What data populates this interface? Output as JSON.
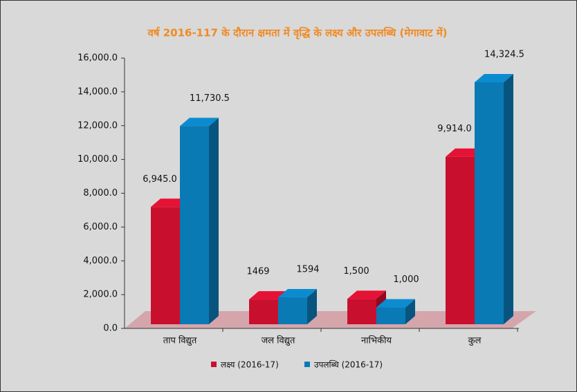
{
  "chart_data": {
    "type": "bar3d",
    "title": "वर्ष 2016-117 के दौरान क्षमता में वृद्धि के लक्ष्य और उपलब्धि (मेगावाट में)",
    "categories": [
      "ताप विद्युत",
      "जल विद्युत",
      "नाभिकीय",
      "कुल"
    ],
    "series": [
      {
        "name": "लक्ष्य (2016-17)",
        "color": "#c8102e",
        "values": [
          6945,
          1469,
          1500,
          9914
        ],
        "value_labels": [
          "6,945.0",
          "1469",
          "1,500",
          "9,914.0"
        ]
      },
      {
        "name": "उपलब्धि (2016-17)",
        "color": "#0a7ab5",
        "values": [
          11730.5,
          1594,
          1000,
          14324.5
        ],
        "value_labels": [
          "11,730.5",
          "1594",
          "1,000",
          "14,324.5"
        ]
      }
    ],
    "ylim": [
      0,
      16000
    ],
    "yticks": [
      {
        "value": 0,
        "label": "0.0"
      },
      {
        "value": 2000,
        "label": "2,000.0"
      },
      {
        "value": 4000,
        "label": "4,000.0"
      },
      {
        "value": 6000,
        "label": "6,000.0"
      },
      {
        "value": 8000,
        "label": "8,000.0"
      },
      {
        "value": 10000,
        "label": "10,000.0"
      },
      {
        "value": 12000,
        "label": "12,000.0"
      },
      {
        "value": 14000,
        "label": "14,000.0"
      },
      {
        "value": 16000,
        "label": "16,000.0"
      }
    ],
    "legend": "bottom"
  }
}
